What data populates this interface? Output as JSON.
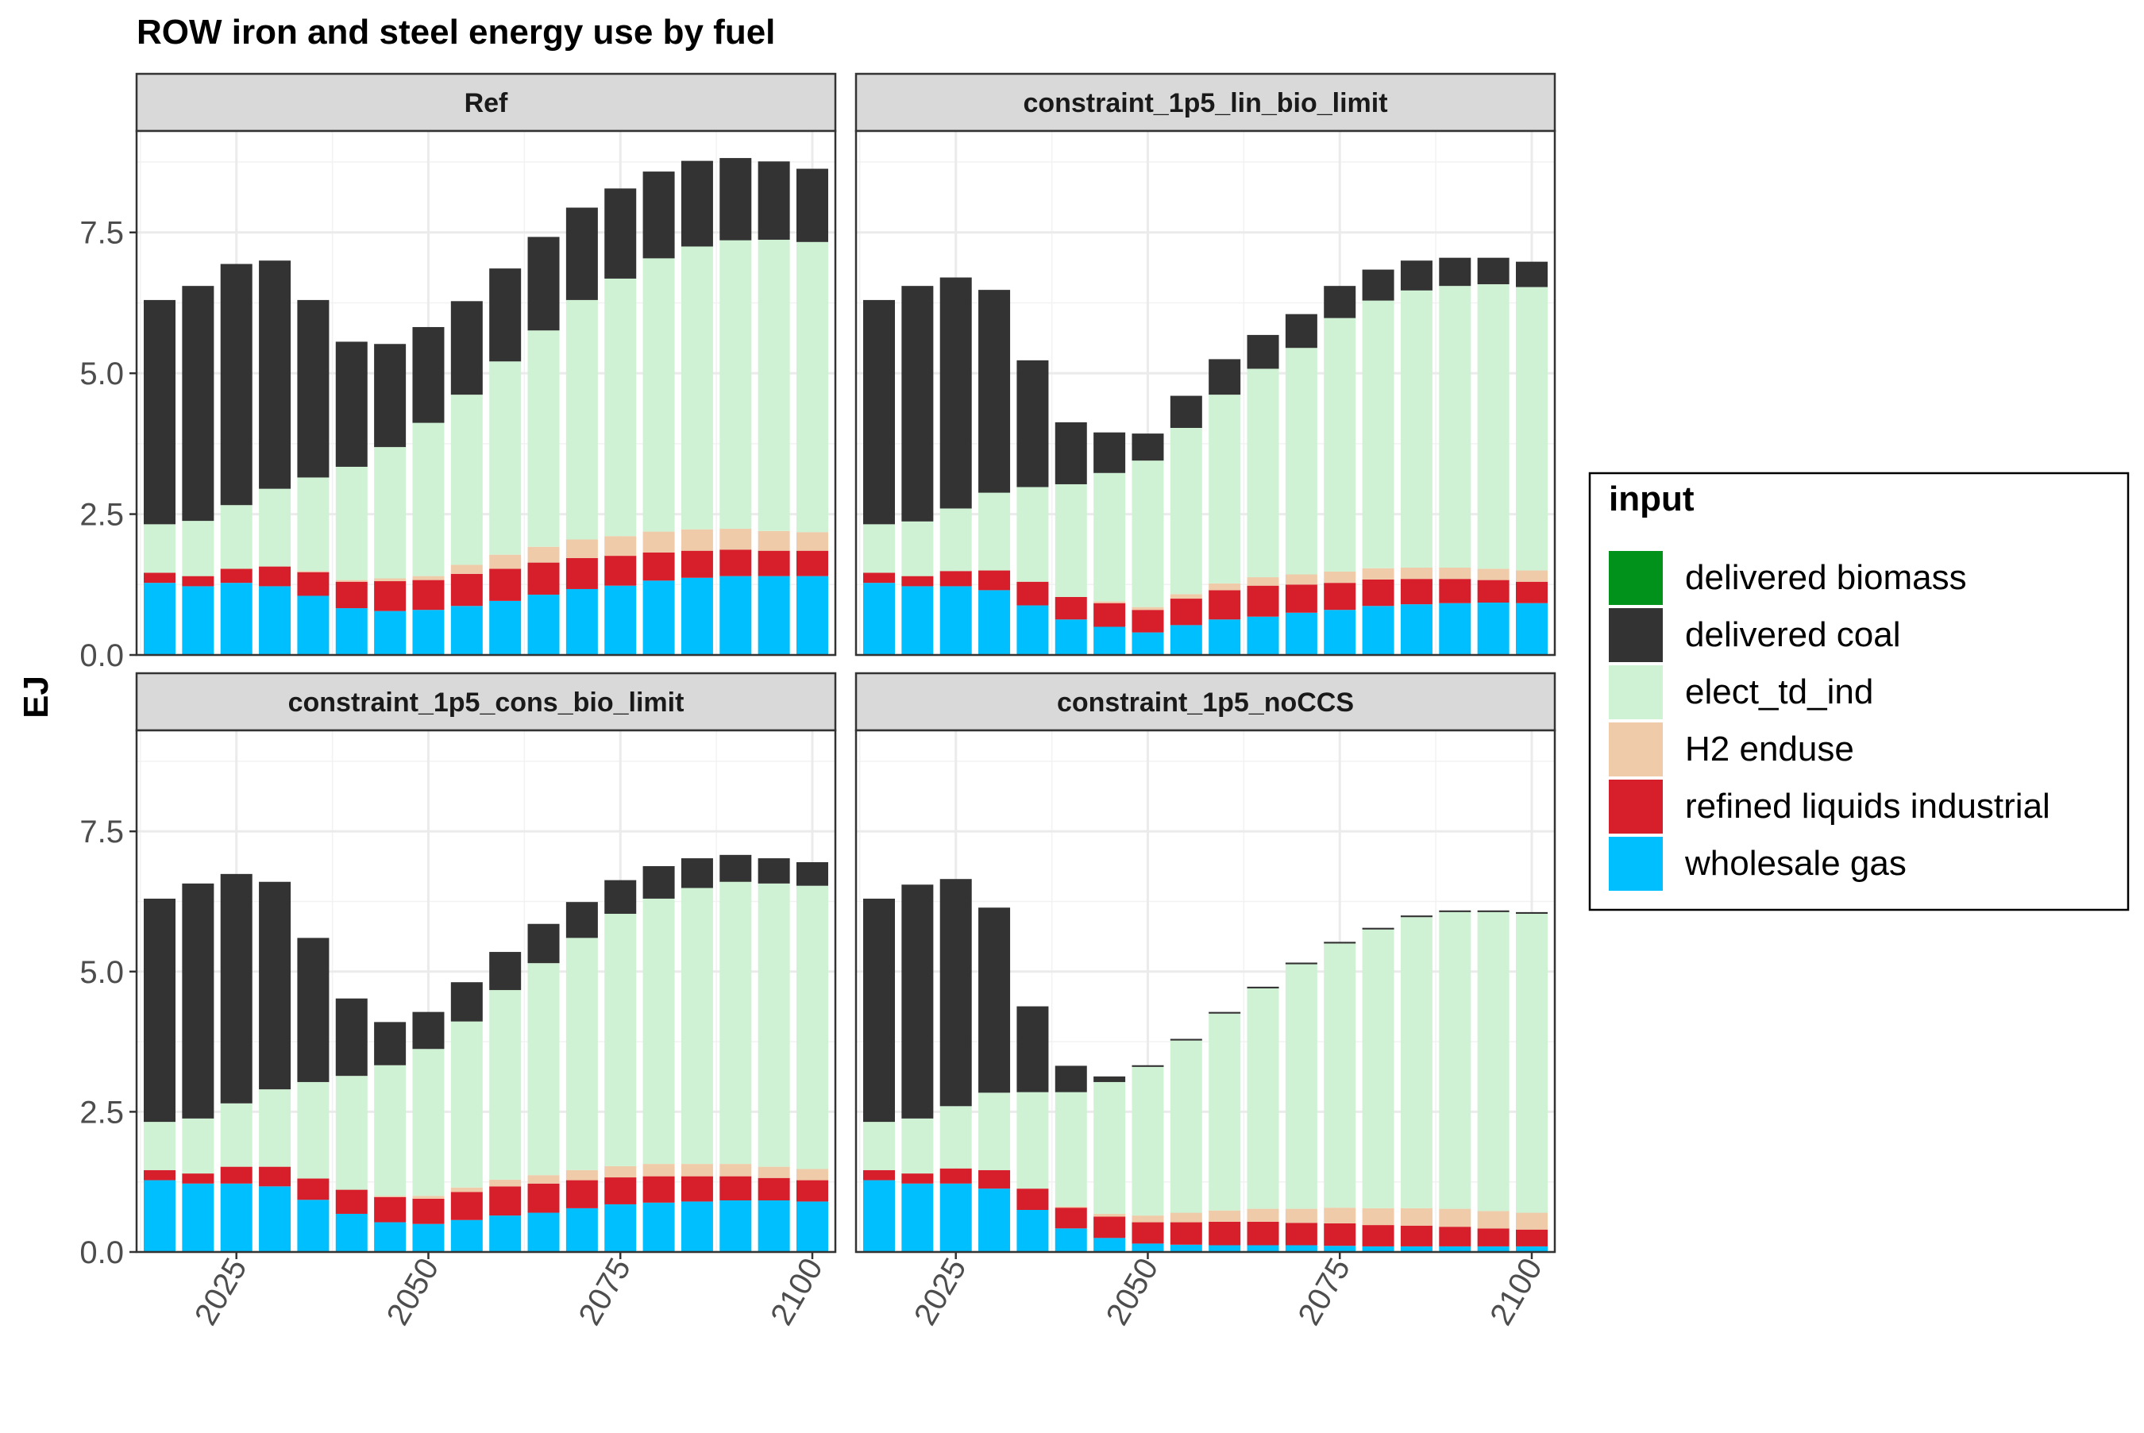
{
  "chart_data": {
    "type": "bar",
    "stacked": true,
    "title": "ROW iron and steel energy use by fuel",
    "ylabel": "EJ",
    "xlabel": "",
    "ylim": [
      0,
      9.3
    ],
    "yticks": [
      0,
      2.5,
      5,
      7.5
    ],
    "ytick_labels": [
      "0.0",
      "2.5",
      "5.0",
      "7.5"
    ],
    "xticks": [
      2025,
      2050,
      2075,
      2100
    ],
    "xtick_labels": [
      "2025",
      "2050",
      "2075",
      "2100"
    ],
    "xlim": [
      2012,
      2103
    ],
    "grid": true,
    "legend": {
      "title": "input",
      "placement": "right",
      "entries": [
        {
          "name": "delivered biomass",
          "color": "#00921B"
        },
        {
          "name": "delivered coal",
          "color": "#333333"
        },
        {
          "name": "elect_td_ind",
          "color": "#D0F2D4"
        },
        {
          "name": "H2 enduse",
          "color": "#EFCBAA"
        },
        {
          "name": "refined liquids industrial",
          "color": "#D71F2C"
        },
        {
          "name": "wholesale gas",
          "color": "#00BFFF"
        }
      ]
    },
    "years": [
      2015,
      2020,
      2025,
      2030,
      2035,
      2040,
      2045,
      2050,
      2055,
      2060,
      2065,
      2070,
      2075,
      2080,
      2085,
      2090,
      2095,
      2100
    ],
    "panels": [
      {
        "title": "Ref",
        "series": [
          {
            "name": "wholesale gas",
            "values": [
              1.28,
              1.22,
              1.28,
              1.22,
              1.05,
              0.83,
              0.78,
              0.8,
              0.87,
              0.96,
              1.07,
              1.17,
              1.23,
              1.32,
              1.37,
              1.4,
              1.4,
              1.4
            ]
          },
          {
            "name": "refined liquids industrial",
            "values": [
              0.18,
              0.18,
              0.25,
              0.35,
              0.42,
              0.47,
              0.53,
              0.53,
              0.57,
              0.57,
              0.57,
              0.55,
              0.53,
              0.5,
              0.48,
              0.47,
              0.45,
              0.45
            ]
          },
          {
            "name": "H2 enduse",
            "values": [
              0.0,
              0.0,
              0.0,
              0.0,
              0.02,
              0.03,
              0.05,
              0.07,
              0.16,
              0.25,
              0.28,
              0.33,
              0.35,
              0.37,
              0.38,
              0.37,
              0.35,
              0.33
            ]
          },
          {
            "name": "elect_td_ind",
            "values": [
              0.86,
              0.98,
              1.13,
              1.38,
              1.66,
              2.01,
              2.33,
              2.72,
              3.02,
              3.43,
              3.84,
              4.25,
              4.57,
              4.85,
              5.02,
              5.12,
              5.17,
              5.15
            ]
          },
          {
            "name": "delivered coal",
            "values": [
              3.98,
              4.17,
              4.28,
              4.05,
              3.15,
              2.22,
              1.83,
              1.7,
              1.66,
              1.65,
              1.66,
              1.64,
              1.6,
              1.54,
              1.52,
              1.46,
              1.39,
              1.3
            ]
          },
          {
            "name": "delivered biomass",
            "values": [
              0,
              0,
              0,
              0,
              0,
              0,
              0,
              0,
              0,
              0,
              0,
              0,
              0,
              0,
              0,
              0,
              0,
              0
            ]
          }
        ]
      },
      {
        "title": "constraint_1p5_lin_bio_limit",
        "series": [
          {
            "name": "wholesale gas",
            "values": [
              1.28,
              1.22,
              1.22,
              1.15,
              0.88,
              0.63,
              0.5,
              0.4,
              0.53,
              0.63,
              0.68,
              0.75,
              0.8,
              0.87,
              0.9,
              0.92,
              0.93,
              0.92
            ]
          },
          {
            "name": "refined liquids industrial",
            "values": [
              0.18,
              0.18,
              0.27,
              0.35,
              0.42,
              0.4,
              0.42,
              0.4,
              0.47,
              0.52,
              0.55,
              0.5,
              0.48,
              0.47,
              0.45,
              0.43,
              0.4,
              0.38
            ]
          },
          {
            "name": "H2 enduse",
            "values": [
              0.0,
              0.0,
              0.0,
              0.0,
              0.0,
              0.0,
              0.03,
              0.05,
              0.08,
              0.12,
              0.15,
              0.18,
              0.2,
              0.2,
              0.2,
              0.2,
              0.2,
              0.2
            ]
          },
          {
            "name": "elect_td_ind",
            "values": [
              0.86,
              0.97,
              1.11,
              1.38,
              1.68,
              2.0,
              2.28,
              2.6,
              2.95,
              3.35,
              3.7,
              4.02,
              4.5,
              4.75,
              4.92,
              5.0,
              5.05,
              5.03
            ]
          },
          {
            "name": "delivered coal",
            "values": [
              3.98,
              4.18,
              4.1,
              3.6,
              2.25,
              1.1,
              0.72,
              0.48,
              0.57,
              0.63,
              0.6,
              0.6,
              0.57,
              0.55,
              0.53,
              0.5,
              0.47,
              0.45
            ]
          },
          {
            "name": "delivered biomass",
            "values": [
              0,
              0,
              0,
              0,
              0,
              0,
              0,
              0,
              0,
              0,
              0,
              0,
              0,
              0,
              0,
              0,
              0,
              0
            ]
          }
        ]
      },
      {
        "title": "constraint_1p5_cons_bio_limit",
        "series": [
          {
            "name": "wholesale gas",
            "values": [
              1.28,
              1.22,
              1.22,
              1.17,
              0.93,
              0.68,
              0.53,
              0.5,
              0.57,
              0.65,
              0.7,
              0.78,
              0.85,
              0.88,
              0.9,
              0.92,
              0.92,
              0.9
            ]
          },
          {
            "name": "refined liquids industrial",
            "values": [
              0.18,
              0.18,
              0.3,
              0.35,
              0.38,
              0.43,
              0.45,
              0.45,
              0.5,
              0.52,
              0.52,
              0.5,
              0.48,
              0.47,
              0.45,
              0.43,
              0.4,
              0.38
            ]
          },
          {
            "name": "H2 enduse",
            "values": [
              0.0,
              0.0,
              0.0,
              0.0,
              0.0,
              0.0,
              0.02,
              0.05,
              0.08,
              0.12,
              0.15,
              0.18,
              0.2,
              0.22,
              0.22,
              0.22,
              0.2,
              0.2
            ]
          },
          {
            "name": "elect_td_ind",
            "values": [
              0.86,
              0.98,
              1.13,
              1.38,
              1.72,
              2.03,
              2.33,
              2.62,
              2.96,
              3.38,
              3.78,
              4.14,
              4.5,
              4.73,
              4.92,
              5.03,
              5.05,
              5.05
            ]
          },
          {
            "name": "delivered coal",
            "values": [
              3.98,
              4.19,
              4.09,
              3.7,
              2.57,
              1.38,
              0.77,
              0.66,
              0.7,
              0.68,
              0.7,
              0.64,
              0.6,
              0.58,
              0.53,
              0.48,
              0.45,
              0.42
            ]
          },
          {
            "name": "delivered biomass",
            "values": [
              0,
              0,
              0,
              0,
              0,
              0,
              0,
              0,
              0,
              0,
              0,
              0,
              0,
              0,
              0,
              0,
              0,
              0
            ]
          }
        ]
      },
      {
        "title": "constraint_1p5_noCCS",
        "series": [
          {
            "name": "wholesale gas",
            "values": [
              1.28,
              1.22,
              1.22,
              1.13,
              0.75,
              0.42,
              0.25,
              0.15,
              0.13,
              0.12,
              0.12,
              0.12,
              0.11,
              0.1,
              0.1,
              0.1,
              0.1,
              0.1
            ]
          },
          {
            "name": "refined liquids industrial",
            "values": [
              0.18,
              0.18,
              0.27,
              0.33,
              0.38,
              0.37,
              0.38,
              0.38,
              0.4,
              0.42,
              0.42,
              0.4,
              0.4,
              0.38,
              0.37,
              0.35,
              0.32,
              0.3
            ]
          },
          {
            "name": "H2 enduse",
            "values": [
              0.0,
              0.0,
              0.0,
              0.0,
              0.0,
              0.02,
              0.05,
              0.12,
              0.17,
              0.2,
              0.23,
              0.25,
              0.28,
              0.3,
              0.31,
              0.32,
              0.31,
              0.3
            ]
          },
          {
            "name": "elect_td_ind",
            "values": [
              0.86,
              0.98,
              1.11,
              1.38,
              1.72,
              2.04,
              2.35,
              2.65,
              3.07,
              3.51,
              3.93,
              4.36,
              4.71,
              4.97,
              5.19,
              5.29,
              5.33,
              5.33
            ]
          },
          {
            "name": "delivered coal",
            "values": [
              3.98,
              4.17,
              4.05,
              3.3,
              1.53,
              0.47,
              0.1,
              0.03,
              0.03,
              0.03,
              0.03,
              0.03,
              0.03,
              0.03,
              0.03,
              0.03,
              0.03,
              0.03
            ]
          },
          {
            "name": "delivered biomass",
            "values": [
              0,
              0,
              0,
              0,
              0,
              0,
              0,
              0,
              0,
              0,
              0,
              0,
              0,
              0,
              0,
              0,
              0,
              0
            ]
          }
        ]
      }
    ]
  }
}
